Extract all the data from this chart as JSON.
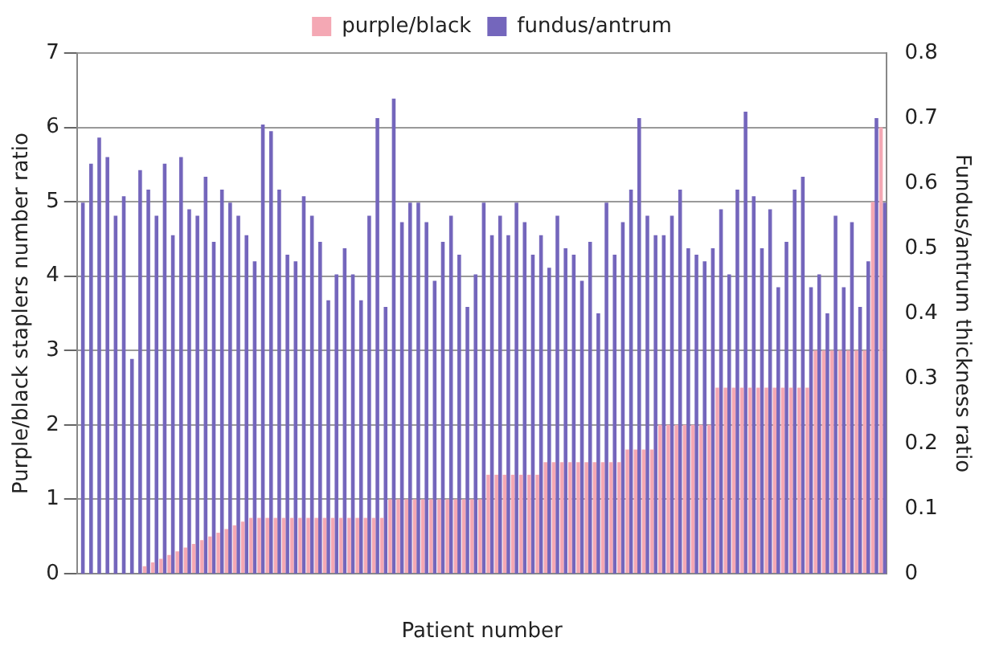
{
  "chart_data": {
    "type": "bar",
    "xlabel": "Patient number",
    "ylabel": "Purple/black staplers number ratio",
    "y2label": "Fundus/antrum thickness ratio",
    "categories": [
      null,
      null,
      null,
      null,
      null,
      null,
      null,
      null,
      null,
      null,
      null,
      null,
      null,
      null,
      null,
      null,
      null,
      null,
      null,
      null,
      null,
      null,
      null,
      null,
      null,
      null,
      null,
      null,
      null,
      null,
      null,
      null,
      null,
      null,
      null,
      null,
      null,
      null,
      null,
      null,
      null,
      null,
      null,
      null,
      null,
      null,
      null,
      null,
      null,
      null,
      null,
      null,
      null,
      null,
      null,
      null,
      null,
      null,
      null,
      null,
      null,
      null,
      null,
      null,
      null,
      null,
      null,
      null,
      null,
      null,
      null,
      null,
      null,
      null,
      null,
      null,
      null,
      null,
      null,
      null,
      null,
      null,
      null,
      null,
      null,
      null,
      null,
      null,
      null,
      null,
      null,
      null,
      null,
      null,
      null,
      null,
      null,
      null,
      null
    ],
    "series": [
      {
        "name": "purple/black",
        "color": "#f4a8b4",
        "values": [
          0,
          0,
          0,
          0,
          0,
          0,
          0,
          0,
          0.1,
          0.15,
          0.2,
          0.25,
          0.3,
          0.35,
          0.4,
          0.45,
          0.5,
          0.55,
          0.6,
          0.65,
          0.7,
          0.75,
          0.75,
          0.75,
          0.75,
          0.75,
          0.75,
          0.75,
          0.75,
          0.75,
          0.75,
          0.75,
          0.75,
          0.75,
          0.75,
          0.75,
          0.75,
          0.75,
          1,
          1,
          1,
          1,
          1,
          1,
          1,
          1,
          1,
          1,
          1,
          1,
          1.33,
          1.33,
          1.33,
          1.33,
          1.33,
          1.33,
          1.33,
          1.5,
          1.5,
          1.5,
          1.5,
          1.5,
          1.5,
          1.5,
          1.5,
          1.5,
          1.5,
          1.67,
          1.67,
          1.67,
          1.67,
          2,
          2,
          2,
          2,
          2,
          2,
          2,
          2.5,
          2.5,
          2.5,
          2.5,
          2.5,
          2.5,
          2.5,
          2.5,
          2.5,
          2.5,
          2.5,
          2.5,
          3,
          3,
          3,
          3,
          3,
          3,
          3,
          5,
          6
        ]
      },
      {
        "name": "fundus/antrum",
        "color": "#7466bc",
        "axis": "y2",
        "values": [
          0.57,
          0.63,
          0.67,
          0.64,
          0.55,
          0.58,
          0.33,
          0.62,
          0.59,
          0.55,
          0.63,
          0.52,
          0.64,
          0.56,
          0.55,
          0.61,
          0.51,
          0.59,
          0.57,
          0.55,
          0.52,
          0.48,
          0.69,
          0.68,
          0.59,
          0.49,
          0.48,
          0.58,
          0.55,
          0.51,
          0.42,
          0.46,
          0.5,
          0.46,
          0.42,
          0.55,
          0.7,
          0.41,
          0.73,
          0.54,
          0.57,
          0.57,
          0.54,
          0.45,
          0.51,
          0.55,
          0.49,
          0.41,
          0.46,
          0.57,
          0.52,
          0.55,
          0.52,
          0.57,
          0.54,
          0.49,
          0.52,
          0.47,
          0.55,
          0.5,
          0.49,
          0.45,
          0.51,
          0.4,
          0.57,
          0.49,
          0.54,
          0.59,
          0.7,
          0.55,
          0.52,
          0.52,
          0.55,
          0.59,
          0.5,
          0.49,
          0.48,
          0.5,
          0.56,
          0.46,
          0.59,
          0.71,
          0.58,
          0.5,
          0.56,
          0.44,
          0.51,
          0.59,
          0.61,
          0.44,
          0.46,
          0.4,
          0.55,
          0.44,
          0.54,
          0.41,
          0.48,
          0.7,
          0.57
        ]
      }
    ],
    "ylim": [
      0,
      7
    ],
    "yticks": [
      0,
      1,
      2,
      3,
      4,
      5,
      6,
      7
    ],
    "y2lim": [
      0,
      0.8
    ],
    "y2ticks": [
      0,
      0.1,
      0.2,
      0.3,
      0.4,
      0.5,
      0.6,
      0.7,
      0.8
    ],
    "grid": "y",
    "legend": "top"
  }
}
